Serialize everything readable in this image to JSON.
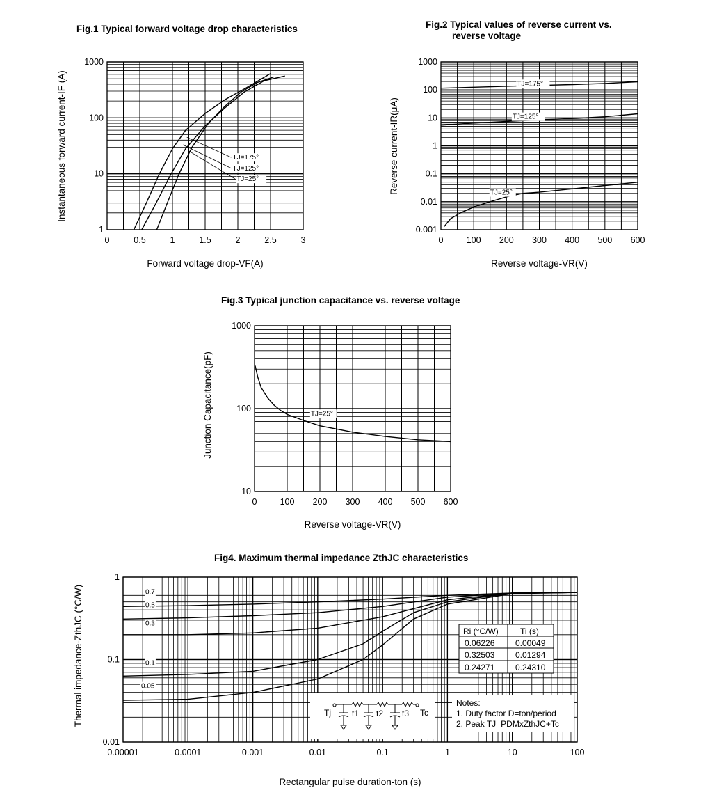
{
  "chart_data": [
    {
      "id": "fig1",
      "type": "line",
      "title": "Fig.1 Typical forward voltage drop characteristics",
      "xlabel": "Forward voltage drop-VF(A)",
      "ylabel": "Instantaneous forward current-IF (A)",
      "xscale": "linear",
      "yscale": "log",
      "xlim": [
        0,
        3
      ],
      "ylim": [
        1,
        1000
      ],
      "xticks": [
        0,
        0.5,
        1,
        1.5,
        2,
        2.5,
        3
      ],
      "xtick_labels": [
        "0",
        "0.5",
        "1",
        "1.5",
        "2",
        "2.5",
        "3"
      ],
      "yticks": [
        1,
        10,
        100,
        1000
      ],
      "ytick_labels": [
        "1",
        "10",
        "100",
        "1000"
      ],
      "series": [
        {
          "name": "TJ=175°",
          "points": [
            [
              0.41,
              1
            ],
            [
              0.6,
              3
            ],
            [
              0.8,
              10
            ],
            [
              1.0,
              28
            ],
            [
              1.2,
              60
            ],
            [
              1.5,
              120
            ],
            [
              1.8,
              210
            ],
            [
              2.1,
              330
            ],
            [
              2.5,
              620
            ]
          ]
        },
        {
          "name": "TJ=125°",
          "points": [
            [
              0.53,
              1
            ],
            [
              0.75,
              3
            ],
            [
              0.98,
              10
            ],
            [
              1.2,
              28
            ],
            [
              1.5,
              72
            ],
            [
              1.8,
              150
            ],
            [
              2.1,
              290
            ],
            [
              2.4,
              460
            ],
            [
              2.72,
              560
            ]
          ]
        },
        {
          "name": "TJ=25°",
          "points": [
            [
              0.76,
              1
            ],
            [
              0.92,
              3
            ],
            [
              1.1,
              10
            ],
            [
              1.3,
              30
            ],
            [
              1.55,
              80
            ],
            [
              1.8,
              160
            ],
            [
              2.05,
              290
            ],
            [
              2.3,
              430
            ],
            [
              2.55,
              540
            ]
          ]
        }
      ],
      "annotations": [
        "TJ=175°",
        "TJ=125°",
        "TJ=25°"
      ]
    },
    {
      "id": "fig2",
      "type": "line",
      "title": "Fig.2 Typical values of reverse current vs. reverse voltage",
      "title_lines": [
        "Fig.2 Typical values of reverse current vs.",
        "reverse voltage"
      ],
      "xlabel": "Reverse voltage-VR(V)",
      "ylabel": "Reverse current-IR(μA)",
      "xscale": "linear",
      "yscale": "log",
      "xlim": [
        0,
        600
      ],
      "ylim": [
        0.001,
        1000
      ],
      "xticks": [
        0,
        100,
        200,
        300,
        400,
        500,
        600
      ],
      "xtick_labels": [
        "0",
        "100",
        "200",
        "300",
        "400",
        "500",
        "600"
      ],
      "yticks": [
        0.001,
        0.01,
        0.1,
        1,
        10,
        100,
        1000
      ],
      "ytick_labels": [
        "0.001",
        "0.01",
        "0.1",
        "1",
        "10",
        "100",
        "1000"
      ],
      "series": [
        {
          "name": "TJ=175°",
          "points": [
            [
              0,
              115
            ],
            [
              100,
              125
            ],
            [
              200,
              135
            ],
            [
              300,
              145
            ],
            [
              400,
              155
            ],
            [
              500,
              170
            ],
            [
              600,
              195
            ]
          ]
        },
        {
          "name": "TJ=125°",
          "points": [
            [
              0,
              5.5
            ],
            [
              100,
              6.5
            ],
            [
              200,
              7.5
            ],
            [
              300,
              8.5
            ],
            [
              400,
              9.5
            ],
            [
              500,
              11
            ],
            [
              600,
              14
            ]
          ]
        },
        {
          "name": "TJ=25°",
          "points": [
            [
              10,
              0.0013
            ],
            [
              30,
              0.0025
            ],
            [
              60,
              0.004
            ],
            [
              100,
              0.0065
            ],
            [
              150,
              0.01
            ],
            [
              200,
              0.015
            ],
            [
              250,
              0.02
            ],
            [
              300,
              0.022
            ],
            [
              400,
              0.029
            ],
            [
              500,
              0.038
            ],
            [
              600,
              0.05
            ]
          ]
        }
      ],
      "annotations": [
        "TJ=175°",
        "TJ=125°",
        "TJ=25°"
      ]
    },
    {
      "id": "fig3",
      "type": "line",
      "title": "Fig.3 Typical junction capacitance vs. reverse voltage",
      "xlabel": "Reverse voltage-VR(V)",
      "ylabel": "Junction Capacitance(pF)",
      "xscale": "linear",
      "yscale": "log",
      "xlim": [
        0,
        600
      ],
      "ylim": [
        10,
        1000
      ],
      "xticks": [
        0,
        100,
        200,
        300,
        400,
        500,
        600
      ],
      "xtick_labels": [
        "0",
        "100",
        "200",
        "300",
        "400",
        "500",
        "600"
      ],
      "yticks": [
        10,
        100,
        1000
      ],
      "ytick_labels": [
        "10",
        "100",
        "1000"
      ],
      "series": [
        {
          "name": "TJ=25°",
          "points": [
            [
              2,
              330
            ],
            [
              10,
              240
            ],
            [
              20,
              180
            ],
            [
              40,
              135
            ],
            [
              60,
              110
            ],
            [
              80,
              95
            ],
            [
              100,
              85
            ],
            [
              150,
              72
            ],
            [
              200,
              62
            ],
            [
              300,
              52
            ],
            [
              400,
              46
            ],
            [
              500,
              42
            ],
            [
              600,
              40
            ]
          ]
        }
      ],
      "annotations": [
        "TJ=25°"
      ]
    },
    {
      "id": "fig4",
      "type": "line",
      "title": "Fig4. Maximum thermal impedance ZthJC characteristics",
      "xlabel": "Rectangular pulse duration-ton (s)",
      "ylabel": "Thermal impedance-ZthJC (°C/W)",
      "xscale": "log",
      "yscale": "log",
      "xlim": [
        1e-05,
        100
      ],
      "ylim": [
        0.01,
        1
      ],
      "xticks": [
        1e-05,
        0.0001,
        0.001,
        0.01,
        0.1,
        1,
        10,
        100
      ],
      "xtick_labels": [
        "0.00001",
        "0.0001",
        "0.001",
        "0.01",
        "0.1",
        "1",
        "10",
        "100"
      ],
      "yticks": [
        0.01,
        0.1,
        1
      ],
      "ytick_labels": [
        "0.01",
        "0.1",
        "1"
      ],
      "series": [
        {
          "name": "0.7",
          "points": [
            [
              1e-05,
              0.44
            ],
            [
              0.0001,
              0.45
            ],
            [
              0.001,
              0.47
            ],
            [
              0.01,
              0.5
            ],
            [
              0.1,
              0.54
            ],
            [
              1,
              0.6
            ],
            [
              10,
              0.64
            ],
            [
              100,
              0.65
            ]
          ]
        },
        {
          "name": "0.5",
          "points": [
            [
              1e-05,
              0.31
            ],
            [
              0.0001,
              0.32
            ],
            [
              0.001,
              0.34
            ],
            [
              0.01,
              0.37
            ],
            [
              0.1,
              0.44
            ],
            [
              1,
              0.57
            ],
            [
              10,
              0.64
            ],
            [
              100,
              0.65
            ]
          ]
        },
        {
          "name": "0.3",
          "points": [
            [
              1e-05,
              0.2
            ],
            [
              0.0001,
              0.2
            ],
            [
              0.001,
              0.21
            ],
            [
              0.01,
              0.24
            ],
            [
              0.1,
              0.33
            ],
            [
              1,
              0.53
            ],
            [
              10,
              0.64
            ],
            [
              100,
              0.65
            ]
          ]
        },
        {
          "name": "0.1",
          "points": [
            [
              1e-05,
              0.063
            ],
            [
              0.0001,
              0.066
            ],
            [
              0.001,
              0.072
            ],
            [
              0.01,
              0.1
            ],
            [
              0.05,
              0.155
            ],
            [
              0.1,
              0.22
            ],
            [
              0.3,
              0.37
            ],
            [
              1,
              0.5
            ],
            [
              10,
              0.64
            ],
            [
              100,
              0.65
            ]
          ]
        },
        {
          "name": "0.05",
          "points": [
            [
              1e-05,
              0.032
            ],
            [
              0.0001,
              0.033
            ],
            [
              0.001,
              0.04
            ],
            [
              0.01,
              0.058
            ],
            [
              0.05,
              0.1
            ],
            [
              0.1,
              0.15
            ],
            [
              0.3,
              0.31
            ],
            [
              1,
              0.47
            ],
            [
              10,
              0.63
            ],
            [
              100,
              0.65
            ]
          ]
        }
      ],
      "annotations": [
        "0.7",
        "0.5",
        "0.3",
        "0.1",
        "0.05"
      ],
      "table": {
        "headers": [
          "Ri (°C/W)",
          "Ti (s)"
        ],
        "rows": [
          [
            "0.06226",
            "0.00049"
          ],
          [
            "0.32503",
            "0.01294"
          ],
          [
            "0.24271",
            "0.24310"
          ]
        ]
      },
      "circuit_labels": [
        "Tj",
        "t1",
        "t2",
        "t3",
        "Tc"
      ],
      "notes": {
        "heading": "Notes:",
        "line1": "1. Duty factor D=ton/period",
        "line2": "2. Peak TJ=PDMxZthJC+Tc"
      }
    }
  ]
}
